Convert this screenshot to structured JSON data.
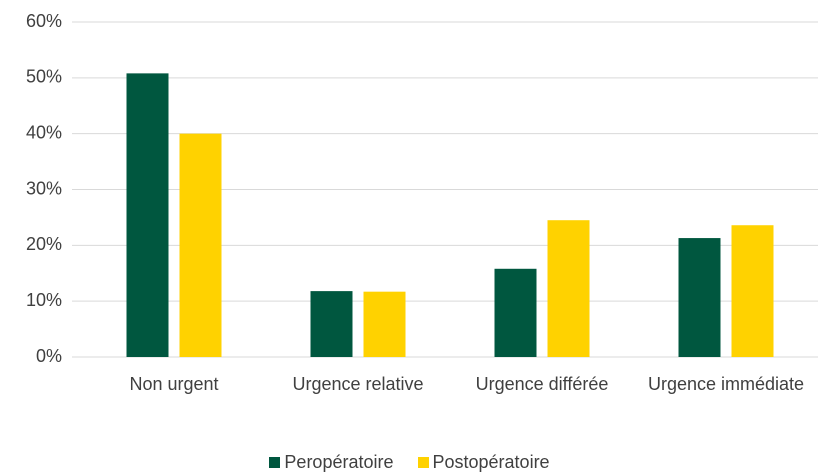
{
  "chart_data": {
    "type": "bar",
    "categories": [
      "Non urgent",
      "Urgence relative",
      "Urgence différée",
      "Urgence immédiate"
    ],
    "series": [
      {
        "name": "Peropératoire",
        "color": "#00573f",
        "values": [
          50.8,
          11.8,
          15.8,
          21.3
        ]
      },
      {
        "name": "Postopératoire",
        "color": "#ffd200",
        "values": [
          40,
          11.7,
          24.5,
          23.6
        ]
      }
    ],
    "ylim": [
      0,
      60
    ],
    "yticks": [
      {
        "value": 0,
        "label": "0%"
      },
      {
        "value": 10,
        "label": "10%"
      },
      {
        "value": 20,
        "label": "20%"
      },
      {
        "value": 30,
        "label": "30%"
      },
      {
        "value": 40,
        "label": "40%"
      },
      {
        "value": 50,
        "label": "50%"
      },
      {
        "value": 60,
        "label": "60%"
      }
    ],
    "grid": true,
    "legend": "bottom"
  }
}
